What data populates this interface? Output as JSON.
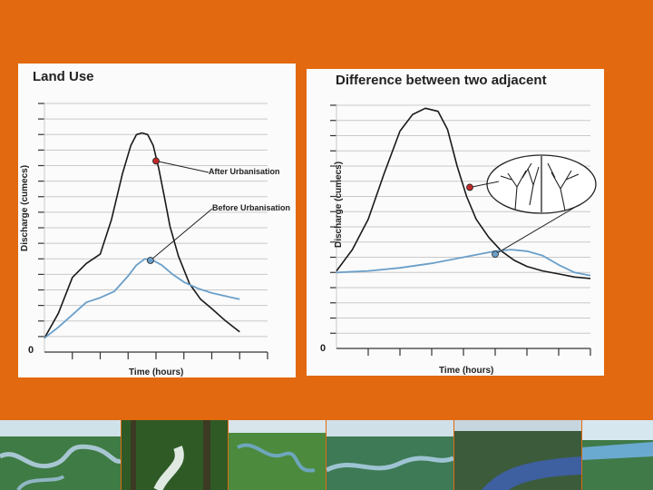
{
  "slide": {
    "background_color": "#e2690f",
    "photo_strip": [
      "river-aerial-photo",
      "forest-stream-photo",
      "meandering-river-photo",
      "river-aerial-photo-2",
      "river-forest-photo",
      "river-coast-photo"
    ]
  },
  "chart_data": [
    {
      "type": "line",
      "title": "Land Use",
      "xlabel": "Time (hours)",
      "ylabel": "Discharge (cumecs)",
      "origin_label": "0",
      "xlim": [
        0,
        8
      ],
      "ylim": [
        0,
        16
      ],
      "grid": true,
      "series": [
        {
          "name": "After Urbanisation",
          "color": "#1a1a1a",
          "x": [
            0,
            0.5,
            1,
            1.5,
            2,
            2.4,
            2.8,
            3.1,
            3.3,
            3.5,
            3.7,
            3.9,
            4.1,
            4.3,
            4.5,
            4.8,
            5.2,
            5.6,
            6,
            6.5,
            7
          ],
          "y": [
            0.9,
            2.5,
            4.8,
            5.7,
            6.3,
            8.5,
            11.5,
            13.3,
            14.0,
            14.1,
            14.0,
            13.3,
            11.8,
            10.0,
            8.1,
            6.2,
            4.4,
            3.4,
            2.8,
            2.0,
            1.3
          ]
        },
        {
          "name": "Before Urbanisation",
          "color": "#6a9fc9",
          "x": [
            0,
            0.5,
            1,
            1.5,
            2,
            2.5,
            3,
            3.3,
            3.6,
            3.9,
            4.2,
            4.6,
            5,
            5.5,
            6,
            6.5,
            7
          ],
          "y": [
            0.9,
            1.6,
            2.4,
            3.2,
            3.5,
            3.9,
            4.9,
            5.6,
            6.0,
            5.9,
            5.6,
            5.0,
            4.5,
            4.1,
            3.8,
            3.6,
            3.4
          ]
        }
      ],
      "annotations": [
        {
          "text": "After Urbanisation",
          "x": 4.0,
          "y": 12.3
        },
        {
          "text": "Before Urbanisation",
          "x": 3.8,
          "y": 5.9
        }
      ]
    },
    {
      "type": "line",
      "title": "Difference between two adjacent",
      "xlabel": "Time (hours)",
      "ylabel": "Discharge (cumecs)",
      "origin_label": "0",
      "xlim": [
        0,
        8
      ],
      "ylim": [
        0,
        16
      ],
      "grid": true,
      "series": [
        {
          "color": "#1a1a1a",
          "x": [
            0,
            0.5,
            1,
            1.5,
            2,
            2.4,
            2.8,
            3.2,
            3.5,
            3.8,
            4.1,
            4.4,
            4.8,
            5.2,
            5.6,
            6,
            6.5,
            7,
            7.5,
            8
          ],
          "y": [
            5.1,
            6.5,
            8.5,
            11.5,
            14.3,
            15.4,
            15.8,
            15.6,
            14.4,
            12.0,
            10.0,
            8.5,
            7.3,
            6.4,
            5.8,
            5.4,
            5.1,
            4.9,
            4.7,
            4.6
          ]
        },
        {
          "color": "#6a9fc9",
          "x": [
            0,
            1,
            2,
            3,
            4,
            4.5,
            5,
            5.5,
            6,
            6.5,
            7,
            7.5,
            8
          ],
          "y": [
            5.0,
            5.1,
            5.3,
            5.6,
            6.0,
            6.2,
            6.4,
            6.5,
            6.4,
            6.1,
            5.5,
            5.0,
            4.8
          ]
        }
      ],
      "markers": [
        {
          "color": "#c0282a",
          "x": 4.2,
          "y": 10.6
        },
        {
          "color": "#6a9fc9",
          "x": 5.0,
          "y": 6.2
        }
      ],
      "inset": "drainage-basin-illustration"
    }
  ]
}
